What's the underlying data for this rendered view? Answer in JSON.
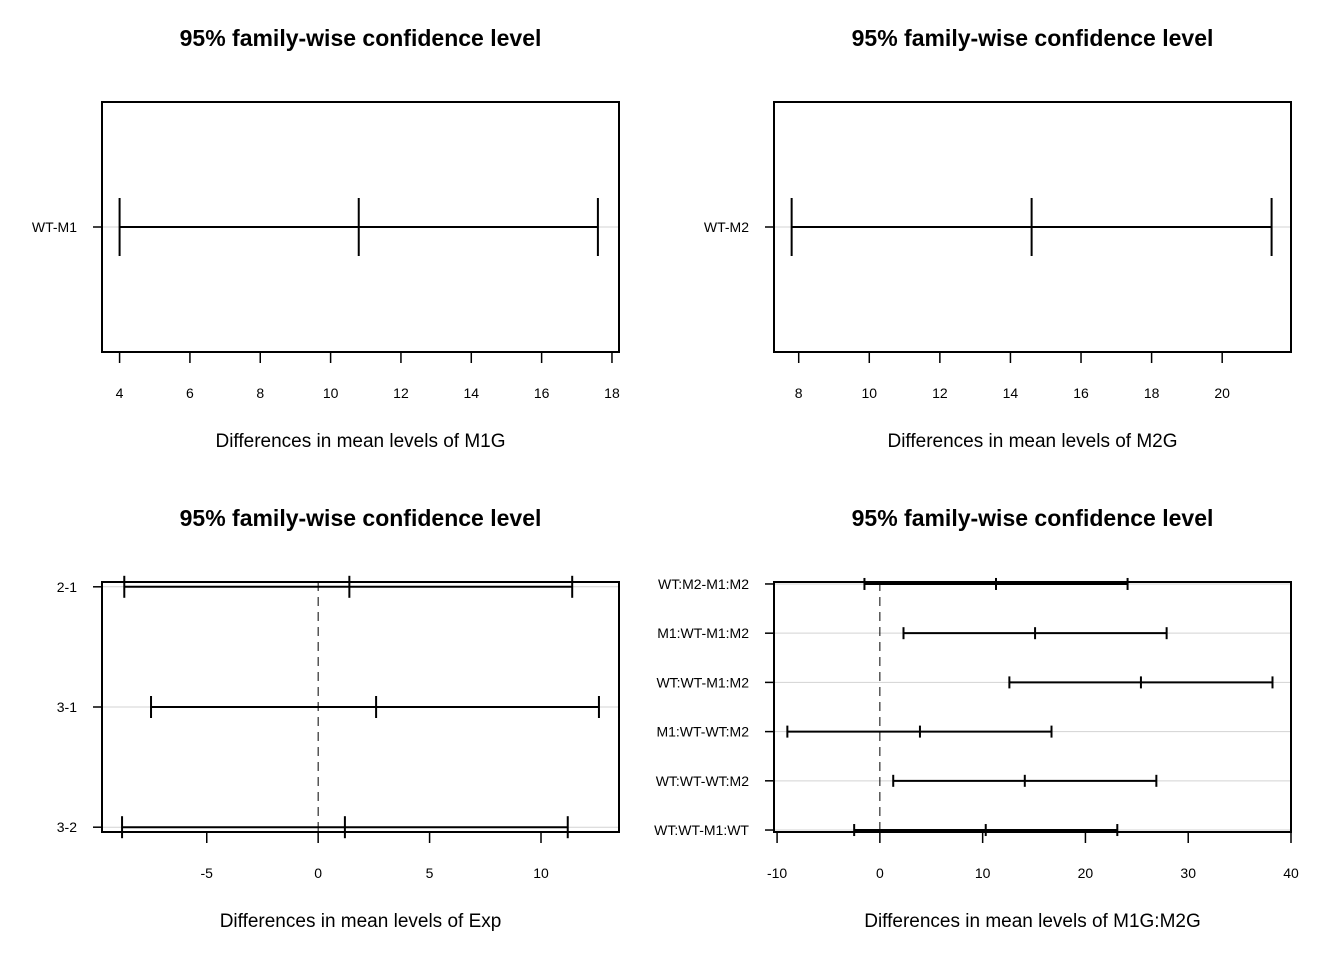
{
  "chart_data": [
    {
      "type": "interval",
      "title": "95% family-wise confidence level",
      "xlabel": "Differences in mean levels of M1G",
      "xlim": [
        3.5,
        18.2
      ],
      "xticks": [
        4,
        6,
        8,
        10,
        12,
        14,
        16,
        18
      ],
      "zero_line": false,
      "grid": "horizontal at each comparison",
      "comparisons": [
        {
          "label": "WT-M1",
          "lwr": 4.0,
          "diff": 10.8,
          "upr": 17.6
        }
      ]
    },
    {
      "type": "interval",
      "title": "95% family-wise confidence level",
      "xlabel": "Differences in mean levels of M2G",
      "xlim": [
        7.3,
        21.95
      ],
      "xticks": [
        8,
        10,
        12,
        14,
        16,
        18,
        20
      ],
      "zero_line": false,
      "grid": "horizontal at each comparison",
      "comparisons": [
        {
          "label": "WT-M2",
          "lwr": 7.8,
          "diff": 14.6,
          "upr": 21.4
        }
      ]
    },
    {
      "type": "interval",
      "title": "95% family-wise confidence level",
      "xlabel": "Differences in mean levels of Exp",
      "xlim": [
        -9.7,
        13.5
      ],
      "xticks": [
        -5,
        0,
        5,
        10
      ],
      "zero_line": true,
      "grid": "horizontal at each comparison",
      "comparisons": [
        {
          "label": "2-1",
          "lwr": -8.7,
          "diff": 1.4,
          "upr": 11.4
        },
        {
          "label": "3-1",
          "lwr": -7.5,
          "diff": 2.6,
          "upr": 12.6
        },
        {
          "label": "3-2",
          "lwr": -8.8,
          "diff": 1.2,
          "upr": 11.2
        }
      ]
    },
    {
      "type": "interval",
      "title": "95% family-wise confidence level",
      "xlabel": "Differences in mean levels of M1G:M2G",
      "xlim": [
        -10.3,
        40.0
      ],
      "xticks": [
        -10,
        0,
        10,
        20,
        30,
        40
      ],
      "zero_line": true,
      "grid": "horizontal at each comparison",
      "comparisons": [
        {
          "label": "WT:M2-M1:M2",
          "lwr": -1.5,
          "diff": 11.3,
          "upr": 24.1
        },
        {
          "label": "M1:WT-M1:M2",
          "lwr": 2.3,
          "diff": 15.1,
          "upr": 27.9
        },
        {
          "label": "WT:WT-M1:M2",
          "lwr": 12.6,
          "diff": 25.4,
          "upr": 38.2
        },
        {
          "label": "M1:WT-WT:M2",
          "lwr": -9.0,
          "diff": 3.9,
          "upr": 16.7
        },
        {
          "label": "WT:WT-WT:M2",
          "lwr": 1.3,
          "diff": 14.1,
          "upr": 26.9
        },
        {
          "label": "WT:WT-M1:WT",
          "lwr": -2.5,
          "diff": 10.3,
          "upr": 23.1
        }
      ]
    }
  ]
}
